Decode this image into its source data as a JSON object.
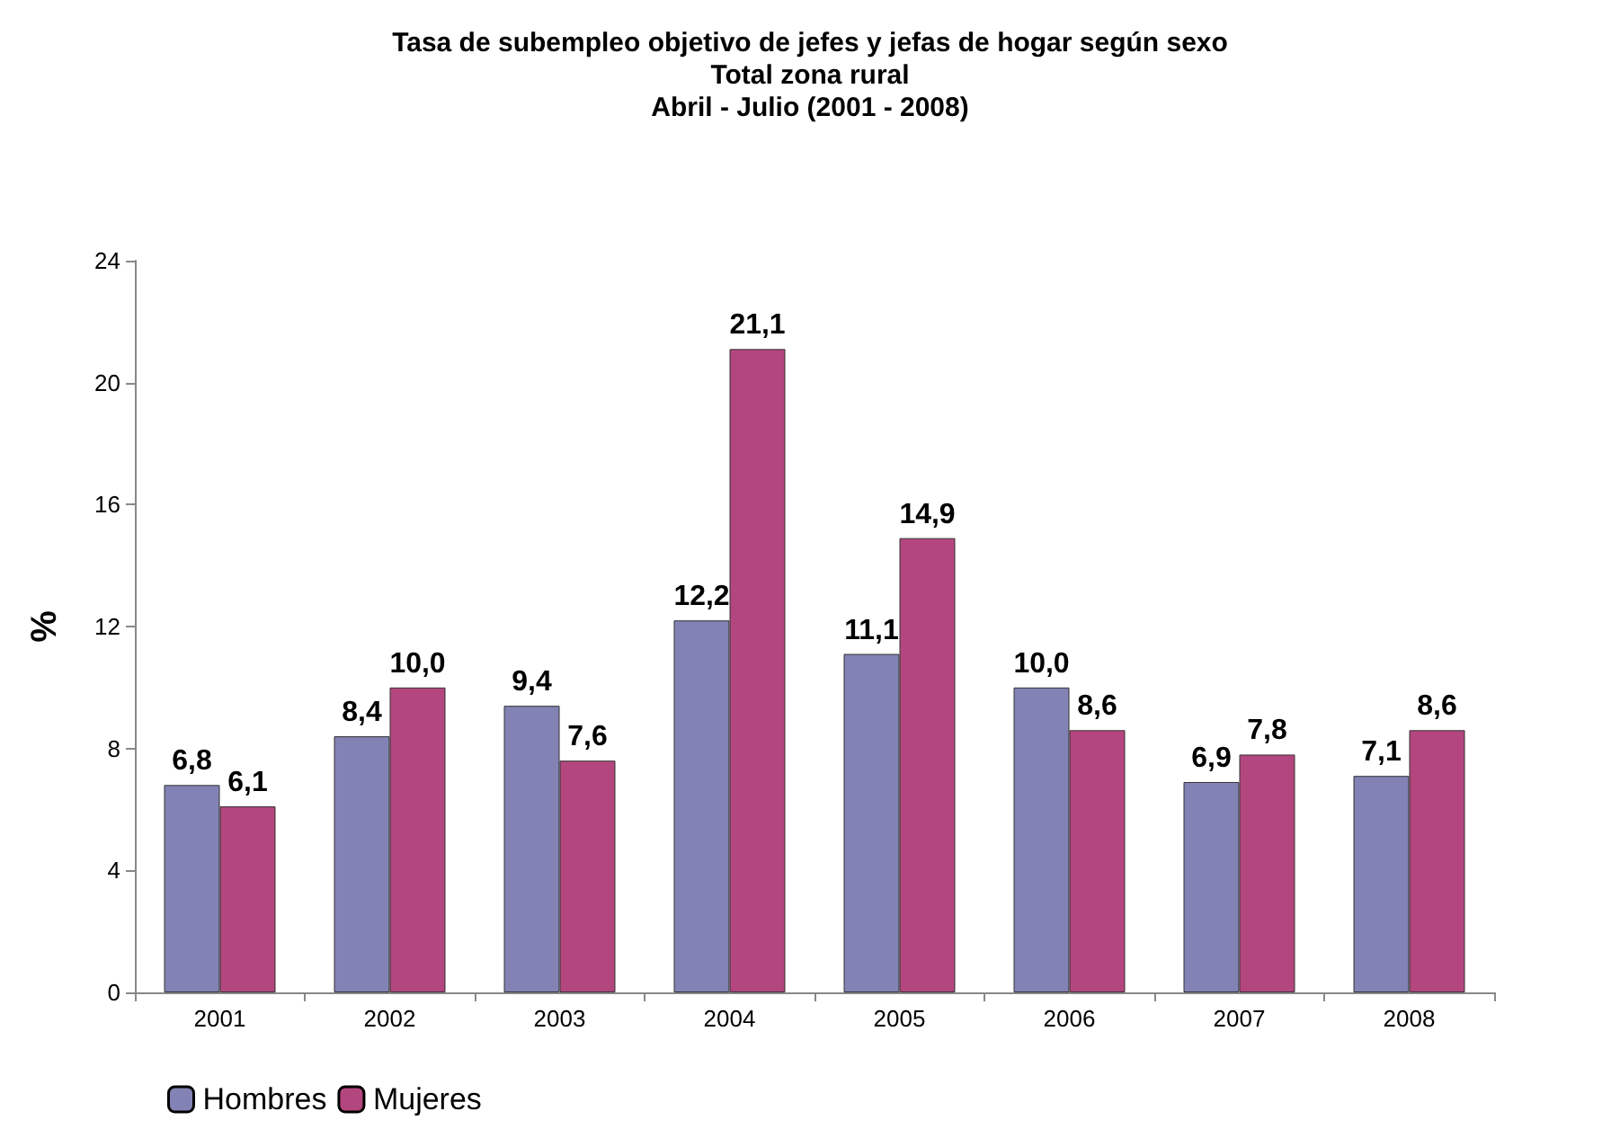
{
  "chart_data": {
    "type": "bar",
    "title": "Tasa de subempleo objetivo de jefes y jefas de hogar según sexo\nTotal zona rural\nAbril - Julio (2001 - 2008)",
    "ylabel": "%",
    "categories": [
      "2001",
      "2002",
      "2003",
      "2004",
      "2005",
      "2006",
      "2007",
      "2008"
    ],
    "series": [
      {
        "name": "Hombres",
        "color": "#8282b4",
        "values": [
          6.8,
          8.4,
          9.4,
          12.2,
          11.1,
          10.0,
          6.9,
          7.1
        ],
        "value_labels": [
          "6,8",
          "8,4",
          "9,4",
          "12,2",
          "11,1",
          "10,0",
          "6,9",
          "7,1"
        ]
      },
      {
        "name": "Mujeres",
        "color": "#b4467f",
        "values": [
          6.1,
          10.0,
          7.6,
          21.1,
          14.9,
          8.6,
          7.8,
          8.6
        ],
        "value_labels": [
          "6,1",
          "10,0",
          "7,6",
          "21,1",
          "14,9",
          "8,6",
          "7,8",
          "8,6"
        ]
      }
    ],
    "ylim": [
      0,
      24
    ],
    "yticks": [
      0,
      4,
      8,
      12,
      16,
      20,
      24
    ],
    "grid": false,
    "legend": "bottom left"
  }
}
